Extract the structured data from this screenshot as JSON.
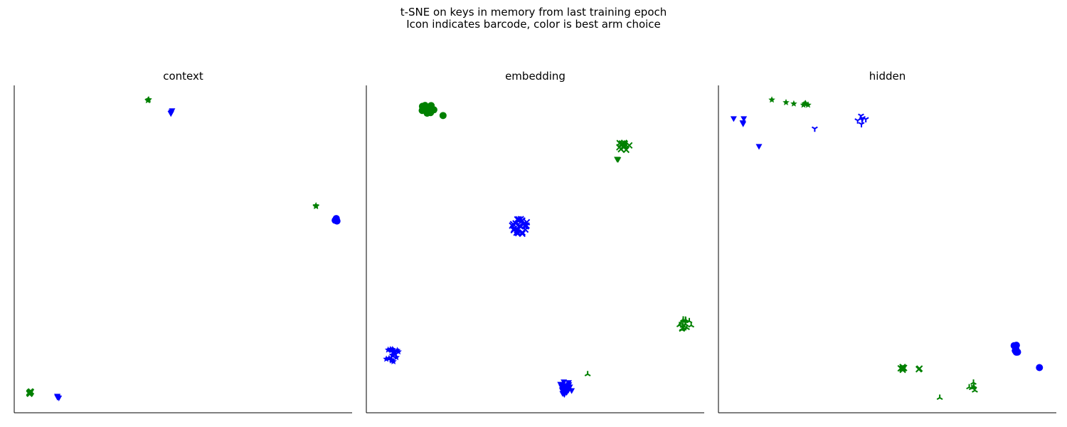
{
  "figure": {
    "title_line1": "t-SNE on keys in memory from last training epoch",
    "title_line2": "Icon indicates barcode, color is best arm choice"
  },
  "colors": {
    "green": "#008000",
    "blue": "#0000ff",
    "axis": "#000000"
  },
  "chart_data": [
    {
      "type": "scatter",
      "title": "context",
      "xlabel": "",
      "ylabel": "",
      "ticks": "none",
      "grid": false,
      "xlim": [
        0,
        100
      ],
      "ylim": [
        0,
        100
      ],
      "clusters": [
        {
          "marker": "star",
          "color": "green",
          "x": 39.8,
          "y": 95.7,
          "n": 3,
          "spread": 0.4
        },
        {
          "marker": "tri_down",
          "color": "blue",
          "x": 46.5,
          "y": 91.8,
          "n": 4,
          "spread": 0.5
        },
        {
          "marker": "star",
          "color": "green",
          "x": 89.3,
          "y": 63.3,
          "n": 3,
          "spread": 0.4
        },
        {
          "marker": "circle",
          "color": "blue",
          "x": 95.2,
          "y": 58.9,
          "n": 4,
          "spread": 0.5
        },
        {
          "marker": "x_filled",
          "color": "green",
          "x": 4.6,
          "y": 6.2,
          "n": 3,
          "spread": 0.5
        },
        {
          "marker": "tri_down",
          "color": "blue",
          "x": 12.8,
          "y": 4.7,
          "n": 3,
          "spread": 0.5
        }
      ]
    },
    {
      "type": "scatter",
      "title": "embedding",
      "xlabel": "",
      "ylabel": "",
      "ticks": "none",
      "grid": false,
      "xlim": [
        0,
        100
      ],
      "ylim": [
        0,
        100
      ],
      "clusters": [
        {
          "marker": "circle",
          "color": "green",
          "x": 18.5,
          "y": 92.8,
          "n": 14,
          "spread": 2.2
        },
        {
          "marker": "circle",
          "color": "green",
          "x": 22.7,
          "y": 90.8,
          "n": 1,
          "spread": 0
        },
        {
          "marker": "x",
          "color": "green",
          "x": 76.5,
          "y": 81.5,
          "n": 12,
          "spread": 1.8
        },
        {
          "marker": "tri_down",
          "color": "green",
          "x": 74.5,
          "y": 77.3,
          "n": 2,
          "spread": 0.4
        },
        {
          "marker": "x",
          "color": "blue",
          "x": 45.5,
          "y": 57.0,
          "n": 24,
          "spread": 2.4
        },
        {
          "marker": "tri_up",
          "color": "green",
          "x": 94.5,
          "y": 27.0,
          "n": 16,
          "spread": 2.0
        },
        {
          "marker": "star",
          "color": "blue",
          "x": 7.8,
          "y": 17.5,
          "n": 18,
          "spread": 2.2
        },
        {
          "marker": "tri_down",
          "color": "blue",
          "x": 59.0,
          "y": 7.5,
          "n": 22,
          "spread": 2.0
        },
        {
          "marker": "tri_up",
          "color": "green",
          "x": 65.5,
          "y": 11.8,
          "n": 1,
          "spread": 0
        }
      ]
    },
    {
      "type": "scatter",
      "title": "hidden",
      "xlabel": "",
      "ylabel": "",
      "ticks": "none",
      "grid": false,
      "xlim": [
        0,
        100
      ],
      "ylim": [
        0,
        100
      ],
      "clusters": [
        {
          "marker": "tri_down",
          "color": "blue",
          "x": 4.5,
          "y": 89.8,
          "n": 1,
          "spread": 0
        },
        {
          "marker": "tri_down",
          "color": "blue",
          "x": 7.5,
          "y": 89.8,
          "n": 1,
          "spread": 0
        },
        {
          "marker": "tri_down",
          "color": "blue",
          "x": 7.3,
          "y": 88.2,
          "n": 2,
          "spread": 0.4
        },
        {
          "marker": "tri_down",
          "color": "blue",
          "x": 12.0,
          "y": 81.3,
          "n": 1,
          "spread": 0
        },
        {
          "marker": "star",
          "color": "green",
          "x": 15.8,
          "y": 95.6,
          "n": 1,
          "spread": 0
        },
        {
          "marker": "star",
          "color": "green",
          "x": 20.0,
          "y": 94.8,
          "n": 1,
          "spread": 0
        },
        {
          "marker": "star",
          "color": "green",
          "x": 22.3,
          "y": 94.4,
          "n": 1,
          "spread": 0
        },
        {
          "marker": "star",
          "color": "green",
          "x": 25.8,
          "y": 94.5,
          "n": 4,
          "spread": 1.0
        },
        {
          "marker": "tri_down_thin",
          "color": "blue",
          "x": 28.5,
          "y": 86.8,
          "n": 1,
          "spread": 0
        },
        {
          "marker": "tri_down_thin",
          "color": "blue",
          "x": 42.5,
          "y": 89.5,
          "n": 6,
          "spread": 1.4
        },
        {
          "marker": "circle",
          "color": "blue",
          "x": 88.0,
          "y": 19.5,
          "n": 7,
          "spread": 1.2
        },
        {
          "marker": "circle",
          "color": "blue",
          "x": 95.0,
          "y": 13.8,
          "n": 1,
          "spread": 0
        },
        {
          "marker": "x",
          "color": "green",
          "x": 54.5,
          "y": 13.5,
          "n": 6,
          "spread": 0.8
        },
        {
          "marker": "x",
          "color": "green",
          "x": 59.5,
          "y": 13.5,
          "n": 2,
          "spread": 0.3
        },
        {
          "marker": "tri_up",
          "color": "green",
          "x": 75.5,
          "y": 7.8,
          "n": 6,
          "spread": 1.6
        },
        {
          "marker": "tri_up",
          "color": "green",
          "x": 65.5,
          "y": 4.6,
          "n": 1,
          "spread": 0
        }
      ]
    }
  ]
}
